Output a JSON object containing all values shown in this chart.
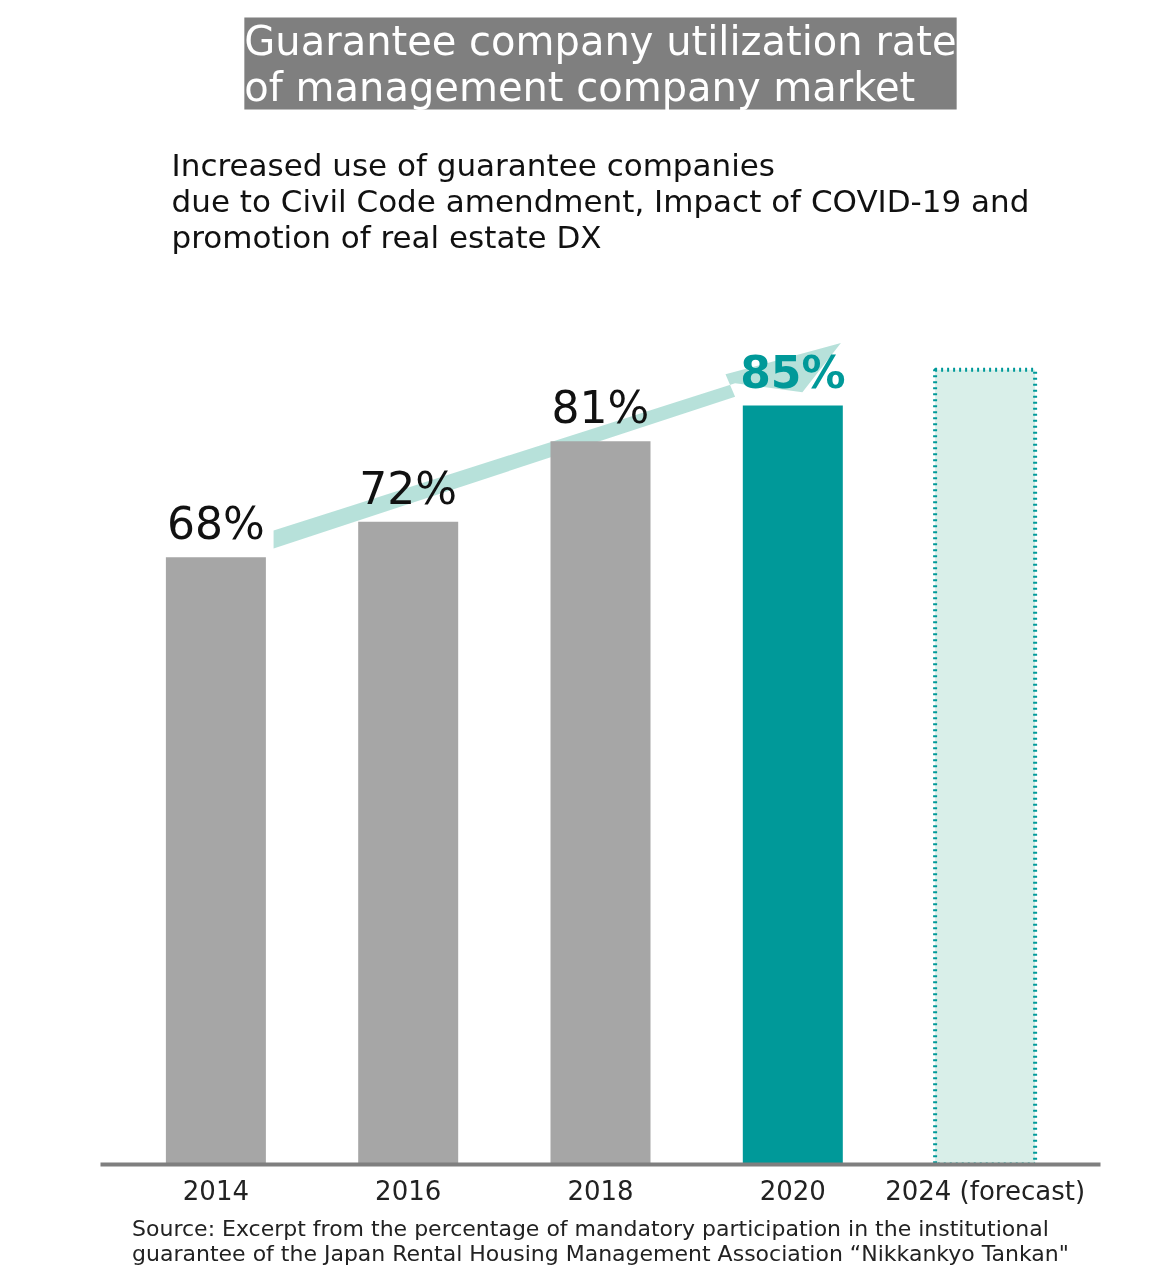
{
  "chart_data": {
    "type": "bar",
    "title": "Guarantee company utilization rate\nof management company market",
    "subtitle": "Increased use of guarantee companies\ndue to Civil Code amendment, Impact of COVID-19 and\npromotion of real estate DX",
    "categories": [
      "2014",
      "2016",
      "2018",
      "2020",
      "2024 (forecast)"
    ],
    "series": [
      {
        "colors": [
          "#a6a6a6",
          "#a6a6a6",
          "#a6a6a6",
          "#009999",
          null
        ],
        "values": [
          68,
          72,
          81,
          85,
          null
        ],
        "value_labels": [
          "68%",
          "72%",
          "81%",
          "85%",
          null
        ]
      },
      {
        "color": "#d9efe9",
        "line_style": "dotted",
        "values": [
          null,
          null,
          null,
          null,
          89
        ]
      }
    ],
    "annotations": [
      "Source: Excerpt from the percentage of mandatory participation in the institutional\nguarantee of the Japan Rental Housing Management Association “Nikkankyo Tankan\""
    ],
    "grid": false
  }
}
